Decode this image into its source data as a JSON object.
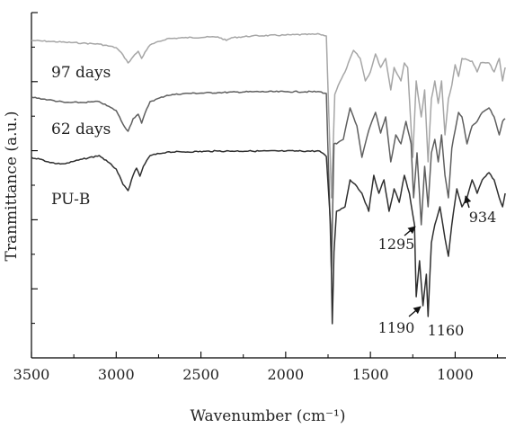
{
  "chart_data": {
    "type": "line",
    "title": "",
    "xlabel": "Wavenumber (cm⁻¹)",
    "ylabel": "Tranmittance (a.u.)",
    "xlim": [
      3500,
      700
    ],
    "x_reversed": true,
    "xticks": [
      3500,
      3000,
      2500,
      2000,
      1500,
      1000
    ],
    "xtick_labels": [
      "3500",
      "3000",
      "2500",
      "2000",
      "1500",
      "1000"
    ],
    "y_ticks_unlabeled": 5,
    "grid": false,
    "legend": "none",
    "series": [
      {
        "name": "97 days",
        "color": "#a6a6a6",
        "points": [
          [
            3500,
            45
          ],
          [
            3400,
            46
          ],
          [
            3300,
            47
          ],
          [
            3200,
            48
          ],
          [
            3100,
            49
          ],
          [
            3000,
            53
          ],
          [
            2960,
            61
          ],
          [
            2930,
            70
          ],
          [
            2900,
            63
          ],
          [
            2870,
            57
          ],
          [
            2850,
            65
          ],
          [
            2830,
            58
          ],
          [
            2800,
            50
          ],
          [
            2700,
            43
          ],
          [
            2600,
            42
          ],
          [
            2400,
            41
          ],
          [
            2350,
            45
          ],
          [
            2320,
            42
          ],
          [
            2200,
            40
          ],
          [
            2000,
            39
          ],
          [
            1800,
            38
          ],
          [
            1760,
            40
          ],
          [
            1730,
            220
          ],
          [
            1710,
            105
          ],
          [
            1690,
            95
          ],
          [
            1650,
            80
          ],
          [
            1600,
            56
          ],
          [
            1560,
            65
          ],
          [
            1530,
            90
          ],
          [
            1500,
            80
          ],
          [
            1470,
            60
          ],
          [
            1440,
            75
          ],
          [
            1410,
            65
          ],
          [
            1380,
            100
          ],
          [
            1360,
            75
          ],
          [
            1320,
            90
          ],
          [
            1300,
            70
          ],
          [
            1280,
            75
          ],
          [
            1250,
            175
          ],
          [
            1230,
            90
          ],
          [
            1200,
            130
          ],
          [
            1180,
            100
          ],
          [
            1160,
            180
          ],
          [
            1140,
            110
          ],
          [
            1120,
            90
          ],
          [
            1100,
            115
          ],
          [
            1080,
            90
          ],
          [
            1060,
            150
          ],
          [
            1040,
            110
          ],
          [
            1020,
            95
          ],
          [
            1000,
            72
          ],
          [
            980,
            85
          ],
          [
            960,
            65
          ],
          [
            900,
            68
          ],
          [
            870,
            80
          ],
          [
            850,
            70
          ],
          [
            800,
            70
          ],
          [
            770,
            80
          ],
          [
            740,
            65
          ],
          [
            720,
            90
          ],
          [
            705,
            75
          ]
        ]
      },
      {
        "name": "62 days",
        "color": "#5f5f5f",
        "points": [
          [
            3500,
            108
          ],
          [
            3400,
            111
          ],
          [
            3300,
            114
          ],
          [
            3200,
            114
          ],
          [
            3100,
            113
          ],
          [
            3000,
            123
          ],
          [
            2960,
            138
          ],
          [
            2930,
            146
          ],
          [
            2900,
            132
          ],
          [
            2870,
            127
          ],
          [
            2850,
            137
          ],
          [
            2830,
            126
          ],
          [
            2800,
            113
          ],
          [
            2700,
            106
          ],
          [
            2600,
            104
          ],
          [
            2400,
            103
          ],
          [
            2200,
            102
          ],
          [
            2000,
            102
          ],
          [
            1800,
            102
          ],
          [
            1760,
            104
          ],
          [
            1730,
            300
          ],
          [
            1715,
            160
          ],
          [
            1700,
            160
          ],
          [
            1660,
            155
          ],
          [
            1620,
            120
          ],
          [
            1580,
            140
          ],
          [
            1550,
            175
          ],
          [
            1510,
            145
          ],
          [
            1470,
            125
          ],
          [
            1440,
            148
          ],
          [
            1410,
            130
          ],
          [
            1380,
            180
          ],
          [
            1350,
            150
          ],
          [
            1320,
            160
          ],
          [
            1290,
            135
          ],
          [
            1260,
            160
          ],
          [
            1245,
            220
          ],
          [
            1225,
            170
          ],
          [
            1200,
            250
          ],
          [
            1180,
            185
          ],
          [
            1160,
            230
          ],
          [
            1140,
            170
          ],
          [
            1120,
            155
          ],
          [
            1100,
            180
          ],
          [
            1080,
            150
          ],
          [
            1060,
            195
          ],
          [
            1040,
            220
          ],
          [
            1020,
            165
          ],
          [
            1000,
            145
          ],
          [
            980,
            125
          ],
          [
            960,
            130
          ],
          [
            930,
            160
          ],
          [
            900,
            140
          ],
          [
            870,
            135
          ],
          [
            840,
            125
          ],
          [
            800,
            120
          ],
          [
            770,
            130
          ],
          [
            740,
            150
          ],
          [
            720,
            135
          ],
          [
            705,
            132
          ]
        ]
      },
      {
        "name": "PU-B",
        "color": "#2f2f2f",
        "points": [
          [
            3500,
            175
          ],
          [
            3450,
            177
          ],
          [
            3400,
            180
          ],
          [
            3350,
            182
          ],
          [
            3300,
            182
          ],
          [
            3200,
            177
          ],
          [
            3100,
            173
          ],
          [
            3050,
            180
          ],
          [
            3000,
            188
          ],
          [
            2960,
            205
          ],
          [
            2930,
            212
          ],
          [
            2900,
            195
          ],
          [
            2880,
            187
          ],
          [
            2860,
            196
          ],
          [
            2840,
            185
          ],
          [
            2800,
            173
          ],
          [
            2700,
            169
          ],
          [
            2600,
            169
          ],
          [
            2400,
            168
          ],
          [
            2200,
            168
          ],
          [
            2000,
            168
          ],
          [
            1800,
            168
          ],
          [
            1760,
            174
          ],
          [
            1735,
            250
          ],
          [
            1725,
            360
          ],
          [
            1715,
            280
          ],
          [
            1700,
            235
          ],
          [
            1650,
            230
          ],
          [
            1620,
            200
          ],
          [
            1590,
            205
          ],
          [
            1550,
            215
          ],
          [
            1510,
            235
          ],
          [
            1480,
            195
          ],
          [
            1450,
            215
          ],
          [
            1420,
            200
          ],
          [
            1390,
            235
          ],
          [
            1360,
            210
          ],
          [
            1330,
            225
          ],
          [
            1300,
            195
          ],
          [
            1270,
            215
          ],
          [
            1240,
            250
          ],
          [
            1230,
            330
          ],
          [
            1210,
            290
          ],
          [
            1190,
            340
          ],
          [
            1170,
            305
          ],
          [
            1160,
            352
          ],
          [
            1140,
            270
          ],
          [
            1120,
            250
          ],
          [
            1090,
            230
          ],
          [
            1060,
            265
          ],
          [
            1040,
            285
          ],
          [
            1020,
            250
          ],
          [
            990,
            210
          ],
          [
            960,
            230
          ],
          [
            930,
            220
          ],
          [
            900,
            200
          ],
          [
            870,
            215
          ],
          [
            840,
            200
          ],
          [
            800,
            192
          ],
          [
            770,
            200
          ],
          [
            740,
            220
          ],
          [
            720,
            230
          ],
          [
            705,
            215
          ]
        ]
      }
    ],
    "series_labels": [
      "97 days",
      "62 days",
      "PU-B"
    ],
    "annotations": [
      {
        "text": "1295",
        "at": [
          1300,
          250
        ]
      },
      {
        "text": "1190",
        "at": [
          1195,
          342
        ]
      },
      {
        "text": "1160",
        "at": [
          1150,
          350
        ]
      },
      {
        "text": "934",
        "at": [
          930,
          212
        ]
      }
    ]
  }
}
